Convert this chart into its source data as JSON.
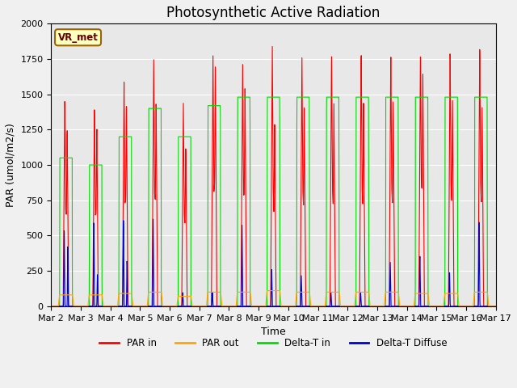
{
  "title": "Photosynthetic Active Radiation",
  "ylabel": "PAR (umol/m2/s)",
  "xlabel": "Time",
  "annotation": "VR_met",
  "ylim": [
    0,
    2000
  ],
  "background_color": "#e8e8e8",
  "fig_facecolor": "#f0f0f0",
  "colors": {
    "PAR in": "#ff0000",
    "PAR out": "#ffa500",
    "Delta-T in": "#00dd00",
    "Delta-T Diffuse": "#0000cc"
  },
  "legend_labels": [
    "PAR in",
    "PAR out",
    "Delta-T in",
    "Delta-T Diffuse"
  ],
  "x_tick_labels": [
    "Mar 2",
    "Mar 3",
    "Mar 4",
    "Mar 5",
    "Mar 6",
    "Mar 7",
    "Mar 8",
    "Mar 9",
    "Mar 10",
    "Mar 11",
    "Mar 12",
    "Mar 13",
    "Mar 14",
    "Mar 15",
    "Mar 16",
    "Mar 17"
  ],
  "title_fontsize": 12,
  "tick_fontsize": 8,
  "label_fontsize": 9,
  "n_days": 15
}
